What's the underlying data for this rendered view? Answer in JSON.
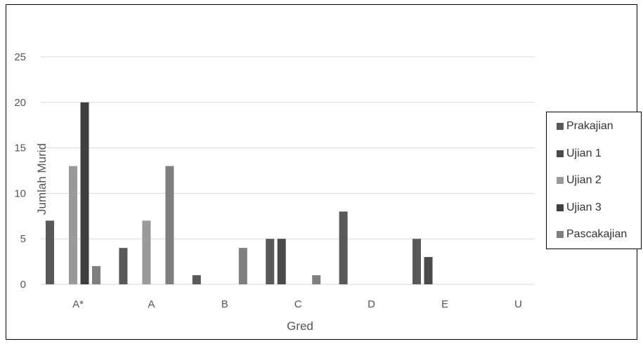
{
  "chart_data": {
    "type": "bar",
    "title": "",
    "xlabel": "Gred",
    "ylabel": "Jumlah Murid",
    "categories": [
      "A*",
      "A",
      "B",
      "C",
      "D",
      "E",
      "U"
    ],
    "ylim": [
      0,
      25
    ],
    "yticks": [
      0,
      5,
      10,
      15,
      20,
      25
    ],
    "grid": true,
    "legend_position": "right",
    "series": [
      {
        "name": "Prakajian",
        "color": "#595959",
        "values": [
          7,
          4,
          1,
          5,
          8,
          5,
          0
        ]
      },
      {
        "name": "Ujian 1",
        "color": "#4a4a4a",
        "values": [
          0,
          0,
          0,
          5,
          0,
          3,
          0
        ]
      },
      {
        "name": "Ujian 2",
        "color": "#9a9a9a",
        "values": [
          13,
          7,
          0,
          0,
          0,
          0,
          0
        ]
      },
      {
        "name": "Ujian 3",
        "color": "#3f3f3f",
        "values": [
          20,
          0,
          0,
          0,
          0,
          0,
          0
        ]
      },
      {
        "name": "Pascakajian",
        "color": "#7f7f7f",
        "values": [
          2,
          13,
          4,
          1,
          0,
          0,
          0
        ]
      }
    ]
  }
}
